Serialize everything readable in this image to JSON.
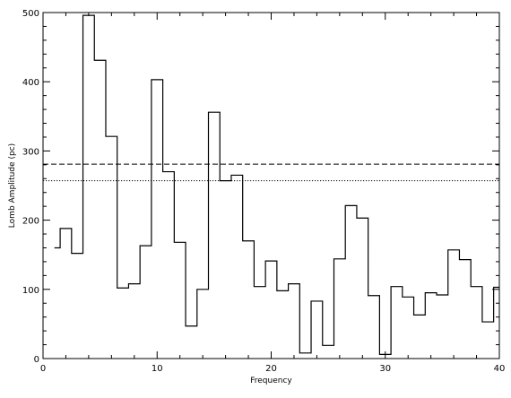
{
  "chart_data": {
    "type": "line",
    "title": "",
    "xlabel": "Frequency",
    "ylabel": "Lomb Amplitude (pc)",
    "xlim": [
      0,
      40
    ],
    "ylim": [
      0,
      500
    ],
    "xticks": [
      0,
      10,
      20,
      30,
      40
    ],
    "yticks": [
      0,
      100,
      200,
      300,
      400,
      500
    ],
    "xminor_step": 2,
    "yminor_step": 20,
    "grid": false,
    "series": [
      {
        "style": "step",
        "x": [
          1,
          2,
          3,
          4,
          5,
          6,
          7,
          8,
          9,
          10,
          11,
          12,
          13,
          14,
          15,
          16,
          17,
          18,
          19,
          20,
          21,
          22,
          23,
          24,
          25,
          26,
          27,
          28,
          29,
          30,
          31,
          32,
          33,
          34,
          35,
          36,
          37,
          38,
          39,
          40
        ],
        "values": [
          160,
          188,
          152,
          496,
          431,
          321,
          102,
          108,
          163,
          403,
          270,
          168,
          47,
          100,
          356,
          257,
          265,
          170,
          104,
          141,
          98,
          108,
          8,
          83,
          19,
          144,
          221,
          203,
          91,
          6,
          104,
          89,
          63,
          95,
          92,
          157,
          143,
          104,
          53,
          103
        ]
      }
    ],
    "reference_lines": [
      {
        "y": 281,
        "style": "dashed"
      },
      {
        "y": 257,
        "style": "dotted"
      }
    ]
  }
}
